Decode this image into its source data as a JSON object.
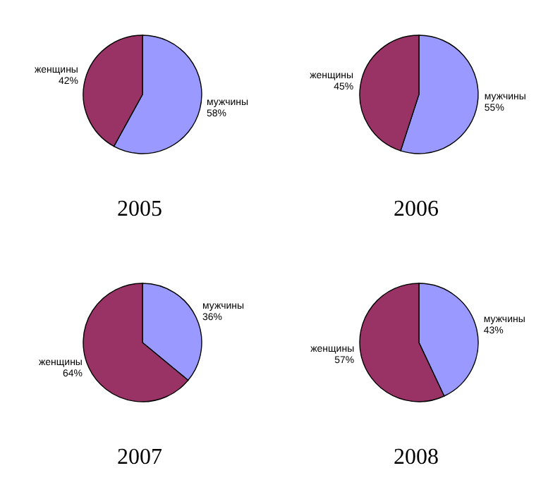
{
  "chart_data": [
    {
      "type": "pie",
      "title": "2005",
      "categories": [
        "мужчины",
        "женщины"
      ],
      "values": [
        58,
        42
      ],
      "value_labels": [
        "58%",
        "42%"
      ],
      "colors": [
        "#9999ff",
        "#993366"
      ]
    },
    {
      "type": "pie",
      "title": "2006",
      "categories": [
        "мужчины",
        "женщины"
      ],
      "values": [
        55,
        45
      ],
      "value_labels": [
        "55%",
        "45%"
      ],
      "colors": [
        "#9999ff",
        "#993366"
      ]
    },
    {
      "type": "pie",
      "title": "2007",
      "categories": [
        "мужчины",
        "женщины"
      ],
      "values": [
        36,
        64
      ],
      "value_labels": [
        "36%",
        "64%"
      ],
      "colors": [
        "#9999ff",
        "#993366"
      ]
    },
    {
      "type": "pie",
      "title": "2008",
      "categories": [
        "мужчины",
        "женщины"
      ],
      "values": [
        43,
        57
      ],
      "value_labels": [
        "43%",
        "57%"
      ],
      "colors": [
        "#9999ff",
        "#993366"
      ]
    }
  ]
}
